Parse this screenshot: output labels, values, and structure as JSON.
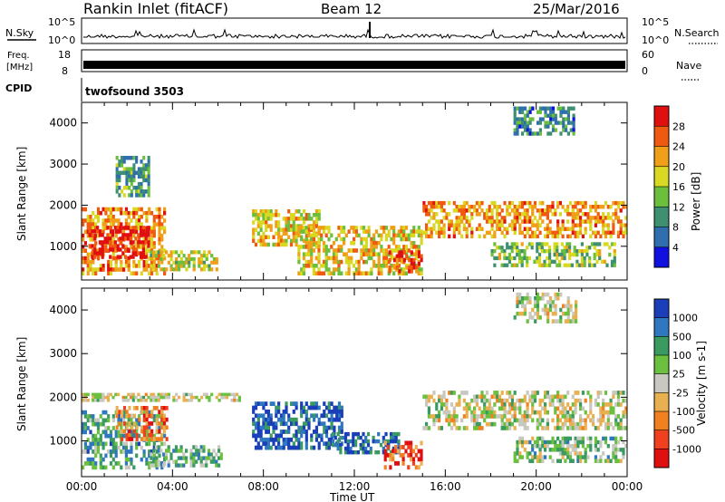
{
  "header": {
    "title": "Rankin Inlet (fitACF)",
    "beam": "Beam 12",
    "date": "25/Mar/2016"
  },
  "status_panels": {
    "nsky_label": "N.Sky",
    "nsearch_label": "N.Search",
    "freq_label_line1": "Freq.",
    "freq_label_line2": "[MHz]",
    "nave_label": "Nave",
    "cpid_label": "CPID",
    "cpid_value": "twofsound 3503",
    "nsky_ticks": [
      "10^5",
      "10^0"
    ],
    "nsearch_ticks": [
      "10^5",
      "10^0"
    ],
    "freq_ticks": [
      "18",
      "8"
    ],
    "nave_ticks": [
      "60",
      "0"
    ]
  },
  "colors": {
    "power_scale": [
      "#1010e0",
      "#2f6fb0",
      "#3f9070",
      "#6cbf3c",
      "#d9d923",
      "#f0a018",
      "#f05a10",
      "#e01010"
    ],
    "velocity_scale": [
      "#1a3fb8",
      "#2f78c0",
      "#3a9a60",
      "#6cc040",
      "#c8c8c0",
      "#e8b050",
      "#f08020",
      "#f04020",
      "#e01010"
    ]
  },
  "chart_data": [
    {
      "type": "heatmap",
      "name": "power",
      "ylabel": "Slant Range [km]",
      "y_ticks": [
        1000,
        2000,
        3000,
        4000
      ],
      "ylim": [
        180,
        4500
      ],
      "colorbar": {
        "label": "Power [dB]",
        "ticks": [
          "28",
          "24",
          "20",
          "16",
          "12",
          "8",
          "4"
        ],
        "levels": [
          0,
          4,
          8,
          12,
          16,
          20,
          24,
          28,
          32
        ]
      },
      "regions": [
        {
          "t0": 0.0,
          "t1": 3.7,
          "r0": 300,
          "r1": 1950,
          "level": 0.72
        },
        {
          "t0": 0.3,
          "t1": 3.0,
          "r0": 700,
          "r1": 1500,
          "level": 0.95
        },
        {
          "t0": 1.5,
          "t1": 3.0,
          "r0": 2200,
          "r1": 3200,
          "level": 0.35
        },
        {
          "t0": 3.0,
          "t1": 6.0,
          "r0": 400,
          "r1": 900,
          "level": 0.55
        },
        {
          "t0": 7.5,
          "t1": 10.5,
          "r0": 1000,
          "r1": 1900,
          "level": 0.6
        },
        {
          "t0": 9.5,
          "t1": 15.0,
          "r0": 300,
          "r1": 1500,
          "level": 0.62
        },
        {
          "t0": 13.5,
          "t1": 15.0,
          "r0": 350,
          "r1": 900,
          "level": 0.9
        },
        {
          "t0": 15.0,
          "t1": 24.0,
          "r0": 1200,
          "r1": 2100,
          "level": 0.7
        },
        {
          "t0": 19.0,
          "t1": 21.7,
          "r0": 3700,
          "r1": 4400,
          "level": 0.3
        },
        {
          "t0": 18.0,
          "t1": 23.5,
          "r0": 500,
          "r1": 1100,
          "level": 0.45
        }
      ]
    },
    {
      "type": "heatmap",
      "name": "velocity",
      "xlabel": "Time UT",
      "ylabel": "Slant Range [km]",
      "x_ticks": [
        "00:00",
        "04:00",
        "08:00",
        "12:00",
        "16:00",
        "20:00",
        "00:00"
      ],
      "xlim": [
        0,
        24
      ],
      "y_ticks": [
        1000,
        2000,
        3000,
        4000
      ],
      "ylim": [
        180,
        4500
      ],
      "colorbar": {
        "label": "Velocity [m s-1]",
        "ticks": [
          "1000",
          "500",
          "100",
          "25",
          "-25",
          "-100",
          "-500",
          "-1000"
        ]
      },
      "regions": [
        {
          "t0": 0.0,
          "t1": 3.7,
          "r0": 350,
          "r1": 1700,
          "level": 0.3
        },
        {
          "t0": 1.5,
          "t1": 3.8,
          "r0": 1000,
          "r1": 1800,
          "level": 0.75
        },
        {
          "t0": 3.0,
          "t1": 6.2,
          "r0": 400,
          "r1": 900,
          "level": 0.35
        },
        {
          "t0": 7.5,
          "t1": 11.5,
          "r0": 800,
          "r1": 1900,
          "level": 0.1
        },
        {
          "t0": 11.0,
          "t1": 14.0,
          "r0": 700,
          "r1": 1200,
          "level": 0.12
        },
        {
          "t0": 13.3,
          "t1": 15.0,
          "r0": 350,
          "r1": 1000,
          "level": 0.82
        },
        {
          "t0": 15.0,
          "t1": 24.0,
          "r0": 1250,
          "r1": 2150,
          "level": 0.5
        },
        {
          "t0": 0.0,
          "t1": 7.0,
          "r0": 1900,
          "r1": 2100,
          "level": 0.5
        },
        {
          "t0": 19.0,
          "t1": 21.8,
          "r0": 3700,
          "r1": 4400,
          "level": 0.5
        },
        {
          "t0": 19.0,
          "t1": 24.0,
          "r0": 500,
          "r1": 1100,
          "level": 0.4
        }
      ]
    }
  ]
}
